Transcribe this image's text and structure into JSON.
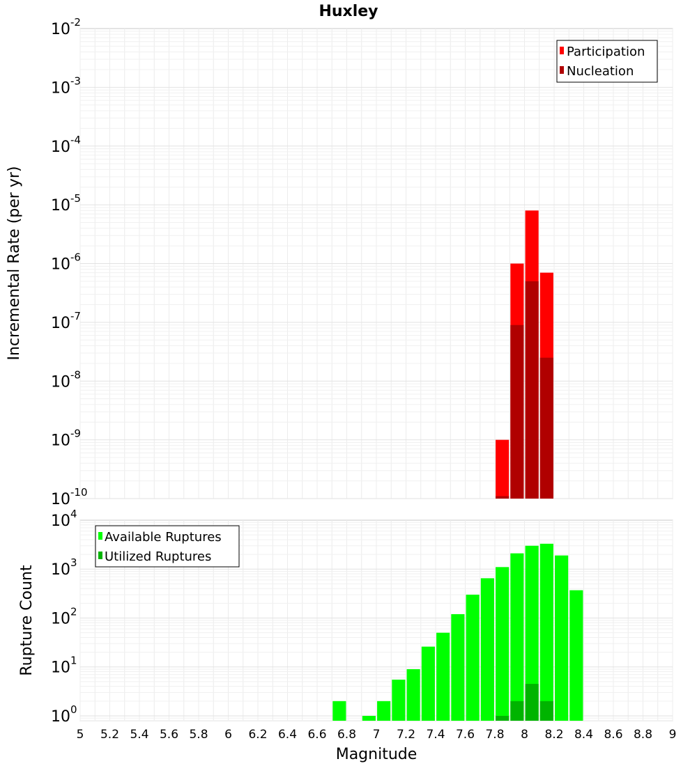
{
  "chart_data": {
    "type": "bar",
    "title": "Huxley",
    "xlabel": "Magnitude",
    "xlim": [
      5,
      9
    ],
    "x_ticks": [
      "5",
      "5.2",
      "5.4",
      "5.6",
      "5.8",
      "6",
      "6.2",
      "6.4",
      "6.6",
      "6.8",
      "7",
      "7.2",
      "7.4",
      "7.6",
      "7.8",
      "8",
      "8.2",
      "8.4",
      "8.6",
      "8.8",
      "9"
    ],
    "panels": [
      {
        "ylabel": "Incremental Rate (per yr)",
        "yscale": "log",
        "ylim_exp": [
          -10,
          -2
        ],
        "legend_position": "top-right",
        "series": [
          {
            "name": "Participation",
            "color": "#ff0000",
            "points": [
              {
                "x": 7.85,
                "y": 1e-09
              },
              {
                "x": 7.95,
                "y": 1e-06
              },
              {
                "x": 8.05,
                "y": 8e-06
              },
              {
                "x": 8.15,
                "y": 7e-07
              }
            ]
          },
          {
            "name": "Nucleation",
            "color": "#b00000",
            "points": [
              {
                "x": 7.85,
                "y": 1.1e-10
              },
              {
                "x": 7.95,
                "y": 9e-08
              },
              {
                "x": 8.05,
                "y": 5e-07
              },
              {
                "x": 8.15,
                "y": 2.5e-08
              }
            ]
          }
        ]
      },
      {
        "ylabel": "Rupture Count",
        "yscale": "log",
        "ylim_exp": [
          -0.1,
          4
        ],
        "legend_position": "top-left",
        "series": [
          {
            "name": "Available Ruptures",
            "color": "#00ff00",
            "points": [
              {
                "x": 6.75,
                "y": 2
              },
              {
                "x": 6.95,
                "y": 1
              },
              {
                "x": 7.05,
                "y": 2
              },
              {
                "x": 7.15,
                "y": 5.5
              },
              {
                "x": 7.25,
                "y": 9
              },
              {
                "x": 7.35,
                "y": 26
              },
              {
                "x": 7.45,
                "y": 50
              },
              {
                "x": 7.55,
                "y": 120
              },
              {
                "x": 7.65,
                "y": 300
              },
              {
                "x": 7.75,
                "y": 650
              },
              {
                "x": 7.85,
                "y": 1100
              },
              {
                "x": 7.95,
                "y": 2100
              },
              {
                "x": 8.05,
                "y": 3000
              },
              {
                "x": 8.15,
                "y": 3300
              },
              {
                "x": 8.25,
                "y": 1900
              },
              {
                "x": 8.35,
                "y": 370
              }
            ]
          },
          {
            "name": "Utilized Ruptures",
            "color": "#00b400",
            "points": [
              {
                "x": 7.85,
                "y": 1
              },
              {
                "x": 7.95,
                "y": 2
              },
              {
                "x": 8.05,
                "y": 4.5
              },
              {
                "x": 8.15,
                "y": 2
              }
            ]
          }
        ]
      }
    ]
  }
}
